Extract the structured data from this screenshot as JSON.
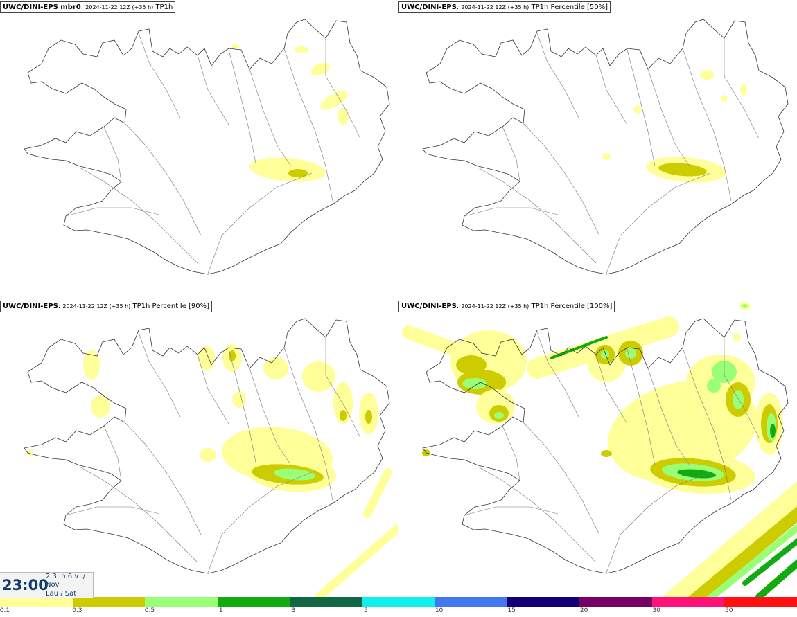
{
  "panels": [
    {
      "model": "UWC/DINI-EPS mbr0",
      "meta": "2024-11-22 12Z (+35 h)",
      "field": "TP1h",
      "level": 0
    },
    {
      "model": "UWC/DINI-EPS",
      "meta": "2024-11-22 12Z (+35 h)",
      "field": "TP1h Percentile [50%]",
      "level": 1
    },
    {
      "model": "UWC/DINI-EPS",
      "meta": "2024-11-22 12Z (+35 h)",
      "field": "TP1h Percentile [90%]",
      "level": 2
    },
    {
      "model": "UWC/DINI-EPS",
      "meta": "2024-11-22 12Z (+35 h)",
      "field": "TP1h Percentile [100%]",
      "level": 3
    }
  ],
  "time": {
    "clock": "23:00",
    "day": "2 3 .n 6 v ./",
    "month": "Nov",
    "weekday": "Lau / Sat"
  },
  "legend": {
    "colors": [
      "#ffff99",
      "#cccc00",
      "#99ff77",
      "#11aa11",
      "#116644",
      "#11eeee",
      "#4477ee",
      "#110077",
      "#770066",
      "#ff1177",
      "#ff1111"
    ],
    "labels": [
      "0.1",
      "0.3",
      "0.5",
      "1",
      "3",
      "5",
      "10",
      "15",
      "20",
      "30",
      "50"
    ]
  }
}
